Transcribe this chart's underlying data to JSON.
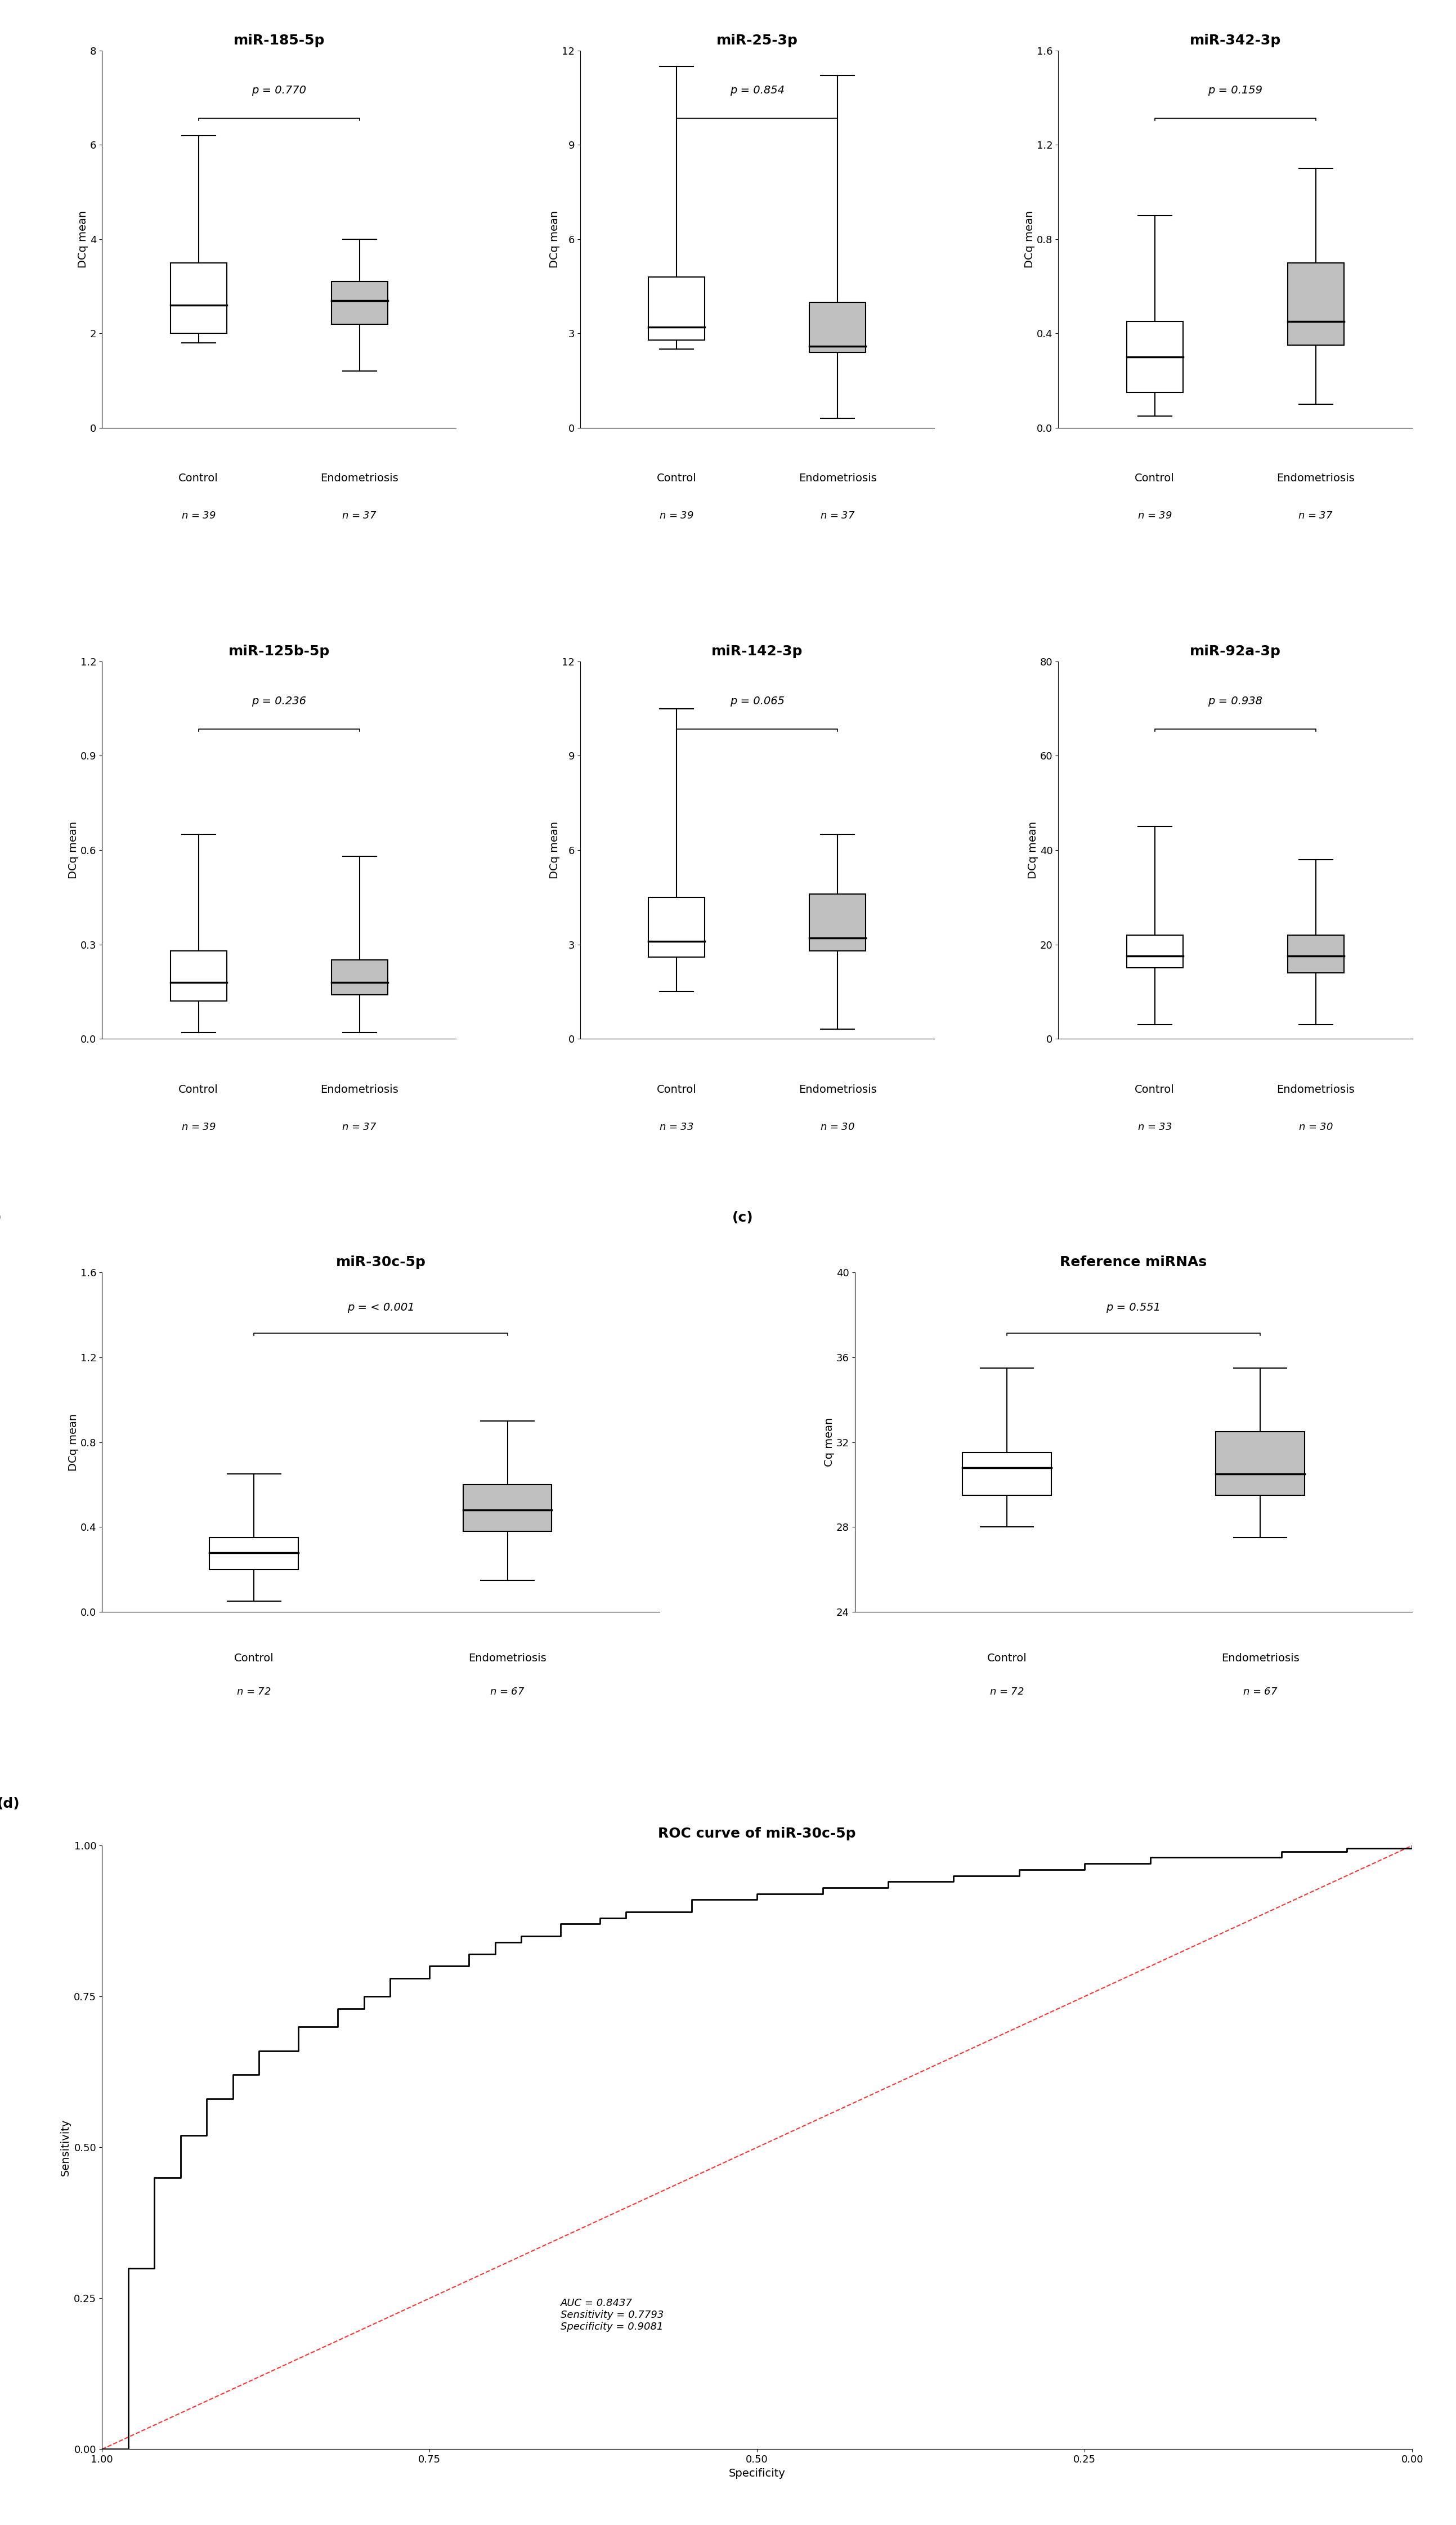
{
  "panels": {
    "a_row1": [
      {
        "title": "miR-185-5p",
        "pvalue": "p = 0.770",
        "ylabel": "DCq mean",
        "ylim": [
          0,
          8
        ],
        "yticks": [
          0,
          2,
          4,
          6,
          8
        ],
        "control": {
          "n": 39,
          "whisker_low": 1.8,
          "q1": 2.0,
          "median": 2.6,
          "q3": 3.5,
          "whisker_high": 6.2
        },
        "endo": {
          "n": 37,
          "whisker_low": 1.2,
          "q1": 2.2,
          "median": 2.7,
          "q3": 3.1,
          "whisker_high": 4.0
        }
      },
      {
        "title": "miR-25-3p",
        "pvalue": "p = 0.854",
        "ylabel": "DCq mean",
        "ylim": [
          0,
          12
        ],
        "yticks": [
          0,
          3,
          6,
          9,
          12
        ],
        "control": {
          "n": 39,
          "whisker_low": 2.5,
          "q1": 2.8,
          "median": 3.2,
          "q3": 4.8,
          "whisker_high": 11.5
        },
        "endo": {
          "n": 37,
          "whisker_low": 0.3,
          "q1": 2.4,
          "median": 2.6,
          "q3": 4.0,
          "whisker_high": 11.2
        }
      },
      {
        "title": "miR-342-3p",
        "pvalue": "p = 0.159",
        "ylabel": "DCq mean",
        "ylim": [
          0,
          1.6
        ],
        "yticks": [
          0,
          0.4,
          0.8,
          1.2,
          1.6
        ],
        "control": {
          "n": 39,
          "whisker_low": 0.05,
          "q1": 0.15,
          "median": 0.3,
          "q3": 0.45,
          "whisker_high": 0.9
        },
        "endo": {
          "n": 37,
          "whisker_low": 0.1,
          "q1": 0.35,
          "median": 0.45,
          "q3": 0.7,
          "whisker_high": 1.1
        }
      }
    ],
    "a_row2": [
      {
        "title": "miR-125b-5p",
        "pvalue": "p = 0.236",
        "ylabel": "DCq mean",
        "ylim": [
          0,
          1.2
        ],
        "yticks": [
          0,
          0.3,
          0.6,
          0.9,
          1.2
        ],
        "control": {
          "n": 39,
          "whisker_low": 0.02,
          "q1": 0.12,
          "median": 0.18,
          "q3": 0.28,
          "whisker_high": 0.65
        },
        "endo": {
          "n": 37,
          "whisker_low": 0.02,
          "q1": 0.14,
          "median": 0.18,
          "q3": 0.25,
          "whisker_high": 0.58
        }
      },
      {
        "title": "miR-142-3p",
        "pvalue": "p = 0.065",
        "ylabel": "DCq mean",
        "ylim": [
          0,
          12
        ],
        "yticks": [
          0,
          3,
          6,
          9,
          12
        ],
        "control": {
          "n": 33,
          "whisker_low": 1.5,
          "q1": 2.6,
          "median": 3.1,
          "q3": 4.5,
          "whisker_high": 10.5
        },
        "endo": {
          "n": 30,
          "whisker_low": 0.3,
          "q1": 2.8,
          "median": 3.2,
          "q3": 4.6,
          "whisker_high": 6.5
        }
      },
      {
        "title": "miR-92a-3p",
        "pvalue": "p = 0.938",
        "ylabel": "DCq mean",
        "ylim": [
          0,
          80
        ],
        "yticks": [
          0,
          20,
          40,
          60,
          80
        ],
        "control": {
          "n": 33,
          "whisker_low": 3.0,
          "q1": 15.0,
          "median": 17.5,
          "q3": 22.0,
          "whisker_high": 45.0
        },
        "endo": {
          "n": 30,
          "whisker_low": 3.0,
          "q1": 14.0,
          "median": 17.5,
          "q3": 22.0,
          "whisker_high": 38.0
        }
      }
    ],
    "b": {
      "title": "miR-30c-5p",
      "pvalue": "p = < 0.001",
      "ylabel": "DCq mean",
      "ylim": [
        0,
        1.6
      ],
      "yticks": [
        0,
        0.4,
        0.8,
        1.2,
        1.6
      ],
      "control": {
        "n": 72,
        "whisker_low": 0.05,
        "q1": 0.2,
        "median": 0.28,
        "q3": 0.35,
        "whisker_high": 0.65
      },
      "endo": {
        "n": 67,
        "whisker_low": 0.15,
        "q1": 0.38,
        "median": 0.48,
        "q3": 0.6,
        "whisker_high": 0.9
      }
    },
    "c": {
      "title": "Reference miRNAs",
      "pvalue": "p = 0.551",
      "ylabel": "Cq mean",
      "ylim": [
        24,
        40
      ],
      "yticks": [
        24,
        28,
        32,
        36,
        40
      ],
      "control": {
        "n": 72,
        "whisker_low": 28.0,
        "q1": 29.5,
        "median": 30.8,
        "q3": 31.5,
        "whisker_high": 35.5
      },
      "endo": {
        "n": 67,
        "whisker_low": 27.5,
        "q1": 29.5,
        "median": 30.5,
        "q3": 32.5,
        "whisker_high": 35.5
      }
    }
  },
  "roc": {
    "auc_text": "AUC = 0.8437\nSensitivity = 0.7793\nSpecificity = 0.9081",
    "title": "ROC curve of miR-30c-5p",
    "xlabel": "Specificity",
    "ylabel": "Sensitivity"
  },
  "colors": {
    "control_box": "#ffffff",
    "endo_box": "#c0c0c0",
    "box_edge": "#000000",
    "median_line": "#000000",
    "whisker": "#000000"
  },
  "font_sizes": {
    "title": 18,
    "pvalue": 14,
    "axis_label": 14,
    "tick_label": 13,
    "sample_label": 14,
    "n_label": 13,
    "panel_label": 18,
    "roc_title": 18,
    "roc_annotation": 13
  }
}
